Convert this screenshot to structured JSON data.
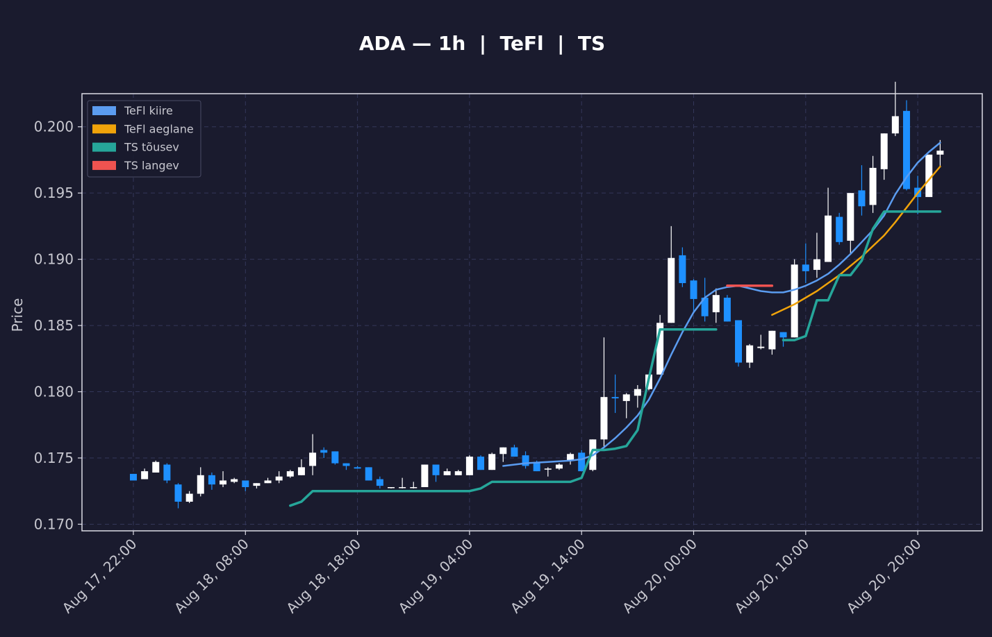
{
  "chart_data": {
    "type": "candlestick",
    "title": "ADA — 1h  |  TeFl  |  TS",
    "xlabel": "",
    "ylabel": "Price",
    "ylim": [
      0.1695,
      0.2025
    ],
    "y_ticks": [
      0.17,
      0.175,
      0.18,
      0.185,
      0.19,
      0.195,
      0.2
    ],
    "y_tick_labels": [
      "0.170",
      "0.175",
      "0.180",
      "0.185",
      "0.190",
      "0.195",
      "0.200"
    ],
    "x_tick_labels": [
      "Aug 17, 22:00",
      "Aug 18, 08:00",
      "Aug 18, 18:00",
      "Aug 19, 04:00",
      "Aug 19, 14:00",
      "Aug 20, 00:00",
      "Aug 20, 10:00",
      "Aug 20, 20:00"
    ],
    "x_start": "Aug 17, 22:00",
    "interval": "1h",
    "grid": true,
    "legend_position": "top-left",
    "colors": {
      "background": "#1a1b2e",
      "bull_candle": "#ffffff",
      "bear_candle": "#1e90ff",
      "tefl_fast": "#5b9cf0",
      "tefl_slow": "#f0a30a",
      "ts_up": "#26a69a",
      "ts_down": "#ef5350",
      "grid": "#34375a",
      "text": "#c8c8d0",
      "frame": "#dcdce6"
    },
    "legend": [
      {
        "label": "TeFl kiire",
        "color": "#5b9cf0"
      },
      {
        "label": "TeFl aeglane",
        "color": "#f0a30a"
      },
      {
        "label": "TS tõusev",
        "color": "#26a69a"
      },
      {
        "label": "TS langev",
        "color": "#ef5350"
      }
    ],
    "candles": [
      [
        0.1738,
        0.1738,
        0.1733,
        0.1733
      ],
      [
        0.1734,
        0.1742,
        0.1734,
        0.174
      ],
      [
        0.1739,
        0.1748,
        0.1739,
        0.1747
      ],
      [
        0.1745,
        0.1746,
        0.1731,
        0.1733
      ],
      [
        0.173,
        0.1731,
        0.1712,
        0.1717
      ],
      [
        0.1717,
        0.1725,
        0.1716,
        0.1723
      ],
      [
        0.1723,
        0.1743,
        0.1721,
        0.1737
      ],
      [
        0.1737,
        0.1739,
        0.1726,
        0.173
      ],
      [
        0.173,
        0.174,
        0.1728,
        0.1733
      ],
      [
        0.1732,
        0.1735,
        0.1731,
        0.1734
      ],
      [
        0.1733,
        0.1733,
        0.1725,
        0.1728
      ],
      [
        0.1729,
        0.1731,
        0.1727,
        0.1731
      ],
      [
        0.1731,
        0.1735,
        0.1731,
        0.1733
      ],
      [
        0.1733,
        0.174,
        0.1731,
        0.1736
      ],
      [
        0.1736,
        0.1741,
        0.1735,
        0.174
      ],
      [
        0.1737,
        0.1749,
        0.1737,
        0.1743
      ],
      [
        0.1744,
        0.1768,
        0.1737,
        0.1754
      ],
      [
        0.1756,
        0.1758,
        0.175,
        0.1754
      ],
      [
        0.1755,
        0.1755,
        0.1745,
        0.1746
      ],
      [
        0.1746,
        0.1746,
        0.1741,
        0.1744
      ],
      [
        0.1743,
        0.1744,
        0.1742,
        0.1742
      ],
      [
        0.1743,
        0.1743,
        0.1733,
        0.1733
      ],
      [
        0.1734,
        0.1736,
        0.1727,
        0.1729
      ],
      [
        0.1728,
        0.1728,
        0.1727,
        0.1728
      ],
      [
        0.1728,
        0.1735,
        0.1727,
        0.1728
      ],
      [
        0.1728,
        0.1732,
        0.1727,
        0.1728
      ],
      [
        0.1728,
        0.1745,
        0.1728,
        0.1745
      ],
      [
        0.1745,
        0.1745,
        0.1732,
        0.1737
      ],
      [
        0.1737,
        0.1742,
        0.1737,
        0.174
      ],
      [
        0.1737,
        0.1741,
        0.1737,
        0.174
      ],
      [
        0.1737,
        0.1752,
        0.1737,
        0.1751
      ],
      [
        0.1751,
        0.1752,
        0.1741,
        0.1741
      ],
      [
        0.1741,
        0.1754,
        0.1741,
        0.1753
      ],
      [
        0.1753,
        0.1758,
        0.1747,
        0.1758
      ],
      [
        0.1758,
        0.176,
        0.1751,
        0.1751
      ],
      [
        0.1752,
        0.1755,
        0.1742,
        0.1744
      ],
      [
        0.1747,
        0.1748,
        0.174,
        0.174
      ],
      [
        0.1742,
        0.1743,
        0.1736,
        0.1742
      ],
      [
        0.1742,
        0.1746,
        0.1741,
        0.1745
      ],
      [
        0.1748,
        0.1754,
        0.1745,
        0.1753
      ],
      [
        0.1754,
        0.1756,
        0.174,
        0.174
      ],
      [
        0.1741,
        0.1764,
        0.174,
        0.1764
      ],
      [
        0.1764,
        0.1841,
        0.1758,
        0.1796
      ],
      [
        0.1796,
        0.1813,
        0.1784,
        0.1795
      ],
      [
        0.1793,
        0.1799,
        0.178,
        0.1798
      ],
      [
        0.1797,
        0.1805,
        0.1788,
        0.1802
      ],
      [
        0.1802,
        0.1813,
        0.1801,
        0.1813
      ],
      [
        0.1813,
        0.1858,
        0.1813,
        0.1852
      ],
      [
        0.1852,
        0.1925,
        0.1852,
        0.1901
      ],
      [
        0.1903,
        0.1909,
        0.1879,
        0.1882
      ],
      [
        0.1884,
        0.1885,
        0.186,
        0.187
      ],
      [
        0.1871,
        0.1886,
        0.1853,
        0.1857
      ],
      [
        0.186,
        0.1878,
        0.1852,
        0.1873
      ],
      [
        0.1871,
        0.1873,
        0.1853,
        0.1853
      ],
      [
        0.1854,
        0.1854,
        0.1819,
        0.1822
      ],
      [
        0.1822,
        0.1836,
        0.1818,
        0.1835
      ],
      [
        0.1833,
        0.1843,
        0.1832,
        0.1834
      ],
      [
        0.1832,
        0.1846,
        0.1828,
        0.1846
      ],
      [
        0.1845,
        0.1845,
        0.1834,
        0.1841
      ],
      [
        0.1841,
        0.19,
        0.1841,
        0.1896
      ],
      [
        0.1896,
        0.1912,
        0.1882,
        0.1891
      ],
      [
        0.1892,
        0.192,
        0.1886,
        0.19
      ],
      [
        0.1898,
        0.1954,
        0.1898,
        0.1933
      ],
      [
        0.1932,
        0.1935,
        0.1911,
        0.1913
      ],
      [
        0.1914,
        0.195,
        0.1904,
        0.195
      ],
      [
        0.1952,
        0.1971,
        0.1933,
        0.194
      ],
      [
        0.1941,
        0.1978,
        0.1935,
        0.1969
      ],
      [
        0.1968,
        0.1995,
        0.196,
        0.1995
      ],
      [
        0.1995,
        0.2034,
        0.1993,
        0.2008
      ],
      [
        0.2012,
        0.202,
        0.1952,
        0.1953
      ],
      [
        0.1954,
        0.1963,
        0.1934,
        0.1947
      ],
      [
        0.1947,
        0.1979,
        0.1947,
        0.1979
      ],
      [
        0.1979,
        0.199,
        0.197,
        0.1982
      ]
    ],
    "series": [
      {
        "name": "TeFl kiire",
        "points": [
          [
            33,
            0.1744
          ],
          [
            35,
            0.1746
          ],
          [
            37,
            0.1747
          ],
          [
            39,
            0.1748
          ],
          [
            40,
            0.1749
          ],
          [
            41,
            0.1752
          ],
          [
            42,
            0.1758
          ],
          [
            43,
            0.1765
          ],
          [
            44,
            0.1773
          ],
          [
            45,
            0.1782
          ],
          [
            46,
            0.1794
          ],
          [
            47,
            0.181
          ],
          [
            48,
            0.1828
          ],
          [
            49,
            0.1845
          ],
          [
            50,
            0.186
          ],
          [
            51,
            0.1871
          ],
          [
            52,
            0.1877
          ],
          [
            53,
            0.1879
          ],
          [
            54,
            0.188
          ],
          [
            55,
            0.1878
          ],
          [
            56,
            0.1876
          ],
          [
            57,
            0.1875
          ],
          [
            58,
            0.1875
          ],
          [
            59,
            0.1877
          ],
          [
            60,
            0.188
          ],
          [
            61,
            0.1884
          ],
          [
            62,
            0.1889
          ],
          [
            63,
            0.1896
          ],
          [
            64,
            0.1904
          ],
          [
            65,
            0.1913
          ],
          [
            66,
            0.1922
          ],
          [
            67,
            0.1933
          ],
          [
            68,
            0.1949
          ],
          [
            69,
            0.1962
          ],
          [
            70,
            0.1973
          ],
          [
            71,
            0.1981
          ],
          [
            72,
            0.1988
          ]
        ]
      },
      {
        "name": "TeFl aeglane",
        "points": [
          [
            57,
            0.1858
          ],
          [
            59,
            0.1866
          ],
          [
            61,
            0.1876
          ],
          [
            63,
            0.1888
          ],
          [
            65,
            0.1902
          ],
          [
            67,
            0.1918
          ],
          [
            68,
            0.1928
          ],
          [
            69,
            0.1939
          ],
          [
            70,
            0.195
          ],
          [
            71,
            0.196
          ],
          [
            72,
            0.197
          ]
        ]
      },
      {
        "name": "TS tõusev",
        "segments": [
          [
            [
              14,
              0.1714
            ],
            [
              15,
              0.1717
            ],
            [
              16,
              0.1725
            ],
            [
              17,
              0.1725
            ],
            [
              30,
              0.1725
            ],
            [
              31,
              0.1727
            ],
            [
              32,
              0.1732
            ],
            [
              39,
              0.1732
            ],
            [
              40,
              0.1735
            ],
            [
              41,
              0.1756
            ],
            [
              42,
              0.1756
            ],
            [
              43,
              0.1757
            ],
            [
              44,
              0.1759
            ],
            [
              45,
              0.1771
            ],
            [
              46,
              0.181
            ],
            [
              47,
              0.1847
            ],
            [
              52,
              0.1847
            ]
          ],
          [
            [
              58,
              0.1839
            ],
            [
              59,
              0.1839
            ],
            [
              60,
              0.1842
            ],
            [
              61,
              0.1869
            ],
            [
              62,
              0.1869
            ],
            [
              63,
              0.1888
            ],
            [
              64,
              0.1888
            ],
            [
              65,
              0.1899
            ],
            [
              66,
              0.1923
            ],
            [
              67,
              0.1936
            ],
            [
              72,
              0.1936
            ]
          ]
        ]
      },
      {
        "name": "TS langev",
        "segments": [
          [
            [
              53,
              0.188
            ],
            [
              57,
              0.188
            ]
          ]
        ]
      }
    ]
  }
}
